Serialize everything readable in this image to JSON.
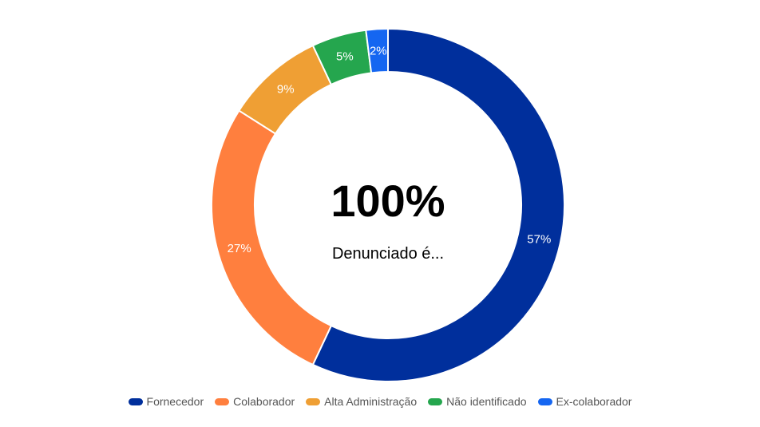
{
  "chart_data": {
    "type": "pie",
    "title": "",
    "center": {
      "value_label": "100%",
      "text": "Denunciado é..."
    },
    "categories": [
      "Fornecedor",
      "Colaborador",
      "Alta Administração",
      "Não identificado",
      "Ex-colaborador"
    ],
    "values": [
      57,
      27,
      9,
      5,
      2
    ],
    "value_labels": [
      "57%",
      "27%",
      "9%",
      "5%",
      "2%"
    ],
    "colors": [
      "#002f9c",
      "#ff7f3e",
      "#ef9f34",
      "#25a64e",
      "#1566f1"
    ],
    "label_colors": [
      "#ffffff",
      "#ffffff",
      "#ffffff",
      "#ffffff",
      "#ffffff"
    ],
    "donut": true,
    "start": "top",
    "direction": "clockwise",
    "legend_position": "bottom"
  }
}
